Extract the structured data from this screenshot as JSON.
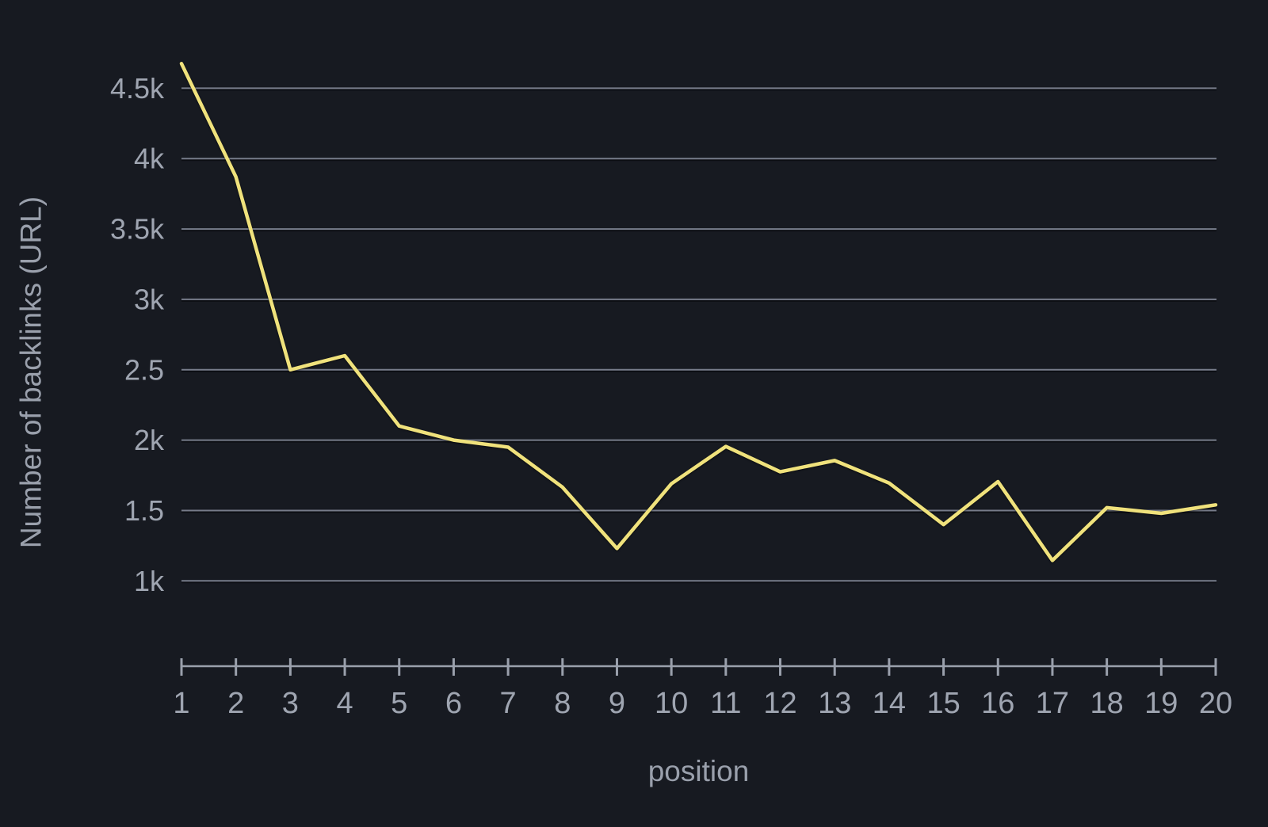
{
  "chart_data": {
    "type": "line",
    "title": "",
    "xlabel": "position",
    "ylabel": "Number of backlinks (URL)",
    "x": [
      1,
      2,
      3,
      4,
      5,
      6,
      7,
      8,
      9,
      10,
      11,
      12,
      13,
      14,
      15,
      16,
      17,
      18,
      19,
      20
    ],
    "series": [
      {
        "name": "Number of backlinks (URL)",
        "values": [
          4675,
          3870,
          2500,
          2600,
          2100,
          2000,
          1950,
          1665,
          1230,
          1690,
          1955,
          1775,
          1855,
          1695,
          1400,
          1705,
          1145,
          1520,
          1480,
          1540
        ]
      }
    ],
    "xtick_labels": [
      "1",
      "2",
      "3",
      "4",
      "5",
      "6",
      "7",
      "8",
      "9",
      "10",
      "11",
      "12",
      "13",
      "14",
      "15",
      "16",
      "17",
      "18",
      "19",
      "20"
    ],
    "ytick_values": [
      4500,
      4000,
      3500,
      3000,
      2500,
      2000,
      1500,
      1000
    ],
    "ytick_labels": [
      "4.5k",
      "4k",
      "3.5k",
      "3k",
      "2.5",
      "2k",
      "1.5",
      "1k"
    ],
    "ylim": [
      1000,
      4500
    ],
    "grid": "horizontal-only",
    "legend": "none",
    "colors": {
      "background": "#171a21",
      "line": "#f0e27c",
      "grid_line": "#7d8290",
      "grid_shadow": "#0b0d12",
      "axis": "#9aa0ac",
      "tick_label": "#9fa5b1",
      "axis_title": "#9aa0ac"
    }
  }
}
